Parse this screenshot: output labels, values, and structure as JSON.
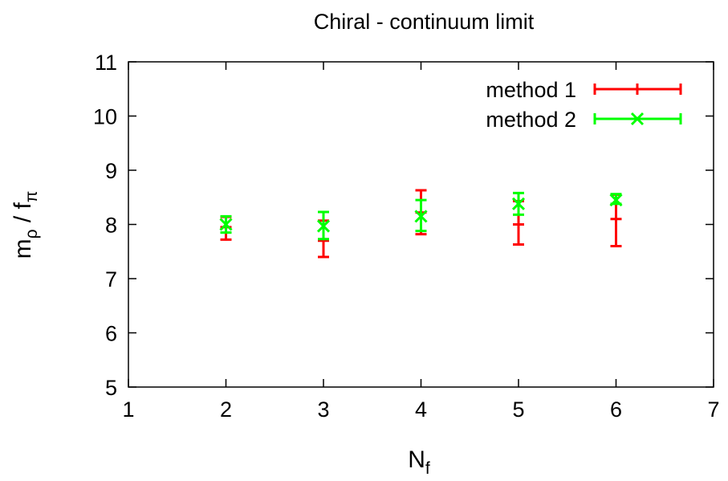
{
  "chart_data": {
    "type": "scatter",
    "title": "Chiral - continuum limit",
    "xlabel": {
      "main": "N",
      "sub": "f"
    },
    "ylabel": {
      "a": "m",
      "a_sub": "ρ",
      "sep": " / ",
      "b": "f",
      "b_sub": "π"
    },
    "xlim": [
      1,
      7
    ],
    "ylim": [
      5,
      11
    ],
    "xticks": [
      1,
      2,
      3,
      4,
      5,
      6,
      7
    ],
    "yticks": [
      5,
      6,
      7,
      8,
      9,
      10,
      11
    ],
    "grid": false,
    "legend_position": "top-right",
    "series": [
      {
        "name": "method 1",
        "color": "#ff0000",
        "marker": "plus",
        "points": [
          {
            "x": 2,
            "y": 7.95,
            "ylow": 7.72,
            "yhigh": 8.14
          },
          {
            "x": 3,
            "y": 7.7,
            "ylow": 7.4,
            "yhigh": 8.07
          },
          {
            "x": 4,
            "y": 8.22,
            "ylow": 7.82,
            "yhigh": 8.63
          },
          {
            "x": 5,
            "y": 8.0,
            "ylow": 7.63,
            "yhigh": 8.43
          },
          {
            "x": 6,
            "y": 8.1,
            "ylow": 7.6,
            "yhigh": 8.55
          }
        ]
      },
      {
        "name": "method 2",
        "color": "#00ff00",
        "marker": "cross",
        "points": [
          {
            "x": 2,
            "y": 8.0,
            "ylow": 7.85,
            "yhigh": 8.15
          },
          {
            "x": 3,
            "y": 7.97,
            "ylow": 7.73,
            "yhigh": 8.23
          },
          {
            "x": 4,
            "y": 8.15,
            "ylow": 7.88,
            "yhigh": 8.45
          },
          {
            "x": 5,
            "y": 8.38,
            "ylow": 8.18,
            "yhigh": 8.58
          },
          {
            "x": 6,
            "y": 8.45,
            "ylow": 8.38,
            "yhigh": 8.56
          }
        ]
      }
    ]
  }
}
